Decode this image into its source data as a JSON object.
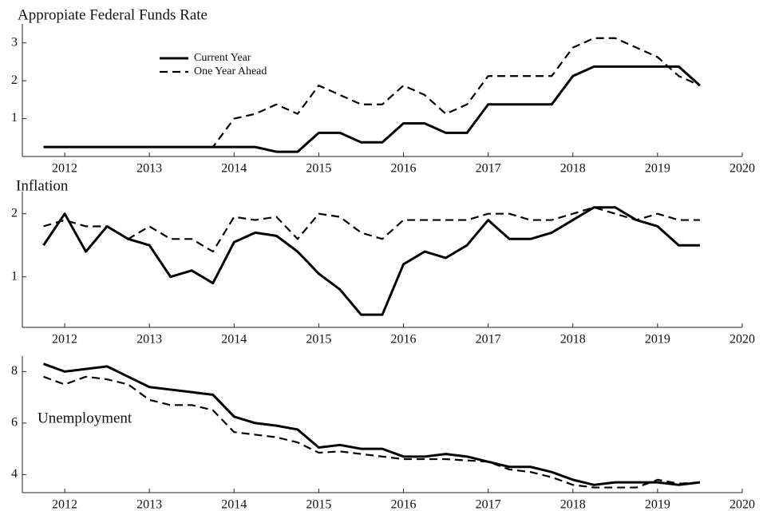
{
  "chart_data": [
    {
      "type": "line",
      "title": "Appropiate Federal Funds Rate",
      "x": [
        2011.75,
        2012,
        2012.25,
        2012.5,
        2012.75,
        2013,
        2013.25,
        2013.5,
        2013.75,
        2014,
        2014.25,
        2014.5,
        2014.75,
        2015,
        2015.25,
        2015.5,
        2015.75,
        2016,
        2016.25,
        2016.5,
        2016.75,
        2017,
        2017.25,
        2017.5,
        2017.75,
        2018,
        2018.25,
        2018.5,
        2018.75,
        2019,
        2019.25,
        2019.5
      ],
      "series": [
        {
          "name": "Current Year",
          "color": "#000000",
          "dash": false,
          "values": [
            0.25,
            0.25,
            0.25,
            0.25,
            0.25,
            0.25,
            0.25,
            0.25,
            0.25,
            0.25,
            0.25,
            0.125,
            0.125,
            0.625,
            0.625,
            0.375,
            0.375,
            0.875,
            0.875,
            0.625,
            0.625,
            1.375,
            1.375,
            1.375,
            1.375,
            2.125,
            2.375,
            2.375,
            2.375,
            2.375,
            2.375,
            1.875
          ]
        },
        {
          "name": "One Year Ahead",
          "color": "#000000",
          "dash": true,
          "values": [
            0.25,
            0.25,
            0.25,
            0.25,
            0.25,
            0.25,
            0.25,
            0.25,
            0.25,
            1.0,
            1.125,
            1.375,
            1.125,
            1.875,
            1.625,
            1.375,
            1.375,
            1.875,
            1.625,
            1.125,
            1.375,
            2.125,
            2.125,
            2.125,
            2.125,
            2.875,
            3.125,
            3.125,
            2.875,
            2.625,
            2.125,
            1.875
          ]
        }
      ],
      "xlim": [
        2011.5,
        2020
      ],
      "xticks": [
        2012,
        2013,
        2014,
        2015,
        2016,
        2017,
        2018,
        2019,
        2020
      ],
      "ylim": [
        0,
        3.5
      ],
      "yticks": [
        1,
        2,
        3
      ],
      "legend": "upper-left"
    },
    {
      "type": "line",
      "title": "Inflation",
      "x": [
        2011.75,
        2012,
        2012.25,
        2012.5,
        2012.75,
        2013,
        2013.25,
        2013.5,
        2013.75,
        2014,
        2014.25,
        2014.5,
        2014.75,
        2015,
        2015.25,
        2015.5,
        2015.75,
        2016,
        2016.25,
        2016.5,
        2016.75,
        2017,
        2017.25,
        2017.5,
        2017.75,
        2018,
        2018.25,
        2018.5,
        2018.75,
        2019,
        2019.25,
        2019.5
      ],
      "series": [
        {
          "color": "#000000",
          "dash": false,
          "values": [
            1.5,
            2.0,
            1.4,
            1.8,
            1.6,
            1.5,
            1.0,
            1.1,
            0.9,
            1.55,
            1.7,
            1.65,
            1.4,
            1.05,
            0.8,
            0.4,
            0.4,
            1.2,
            1.4,
            1.3,
            1.5,
            1.9,
            1.6,
            1.6,
            1.7,
            1.9,
            2.1,
            2.1,
            1.9,
            1.8,
            1.5,
            1.5
          ]
        },
        {
          "color": "#000000",
          "dash": true,
          "values": [
            1.8,
            1.9,
            1.8,
            1.8,
            1.6,
            1.8,
            1.6,
            1.6,
            1.4,
            1.95,
            1.9,
            1.95,
            1.6,
            2.0,
            1.95,
            1.7,
            1.6,
            1.9,
            1.9,
            1.9,
            1.9,
            2.0,
            2.0,
            1.9,
            1.9,
            2.0,
            2.1,
            2.0,
            1.9,
            2.0,
            1.9,
            1.9
          ]
        }
      ],
      "xlim": [
        2011.5,
        2020
      ],
      "xticks": [
        2012,
        2013,
        2014,
        2015,
        2016,
        2017,
        2018,
        2019,
        2020
      ],
      "ylim": [
        0.2,
        2.35
      ],
      "yticks": [
        1,
        2
      ]
    },
    {
      "type": "line",
      "title": "Unemployment",
      "x": [
        2011.75,
        2012,
        2012.25,
        2012.5,
        2012.75,
        2013,
        2013.25,
        2013.5,
        2013.75,
        2014,
        2014.25,
        2014.5,
        2014.75,
        2015,
        2015.25,
        2015.5,
        2015.75,
        2016,
        2016.25,
        2016.5,
        2016.75,
        2017,
        2017.25,
        2017.5,
        2017.75,
        2018,
        2018.25,
        2018.5,
        2018.75,
        2019,
        2019.25,
        2019.5
      ],
      "series": [
        {
          "color": "#000000",
          "dash": false,
          "values": [
            8.3,
            8.0,
            8.1,
            8.2,
            7.8,
            7.4,
            7.3,
            7.2,
            7.1,
            6.25,
            6.0,
            5.9,
            5.75,
            5.05,
            5.15,
            5.0,
            5.0,
            4.7,
            4.7,
            4.8,
            4.7,
            4.5,
            4.3,
            4.3,
            4.1,
            3.8,
            3.6,
            3.7,
            3.7,
            3.7,
            3.6,
            3.7
          ]
        },
        {
          "color": "#000000",
          "dash": true,
          "values": [
            7.8,
            7.5,
            7.8,
            7.7,
            7.5,
            6.9,
            6.7,
            6.7,
            6.5,
            5.65,
            5.55,
            5.45,
            5.25,
            4.85,
            4.9,
            4.8,
            4.7,
            4.6,
            4.6,
            4.6,
            4.55,
            4.5,
            4.2,
            4.1,
            3.9,
            3.6,
            3.5,
            3.5,
            3.5,
            3.8,
            3.65,
            3.7
          ]
        }
      ],
      "xlim": [
        2011.5,
        2020
      ],
      "xticks": [
        2012,
        2013,
        2014,
        2015,
        2016,
        2017,
        2018,
        2019,
        2020
      ],
      "ylim": [
        3.3,
        8.6
      ],
      "yticks": [
        4,
        6,
        8
      ]
    }
  ]
}
